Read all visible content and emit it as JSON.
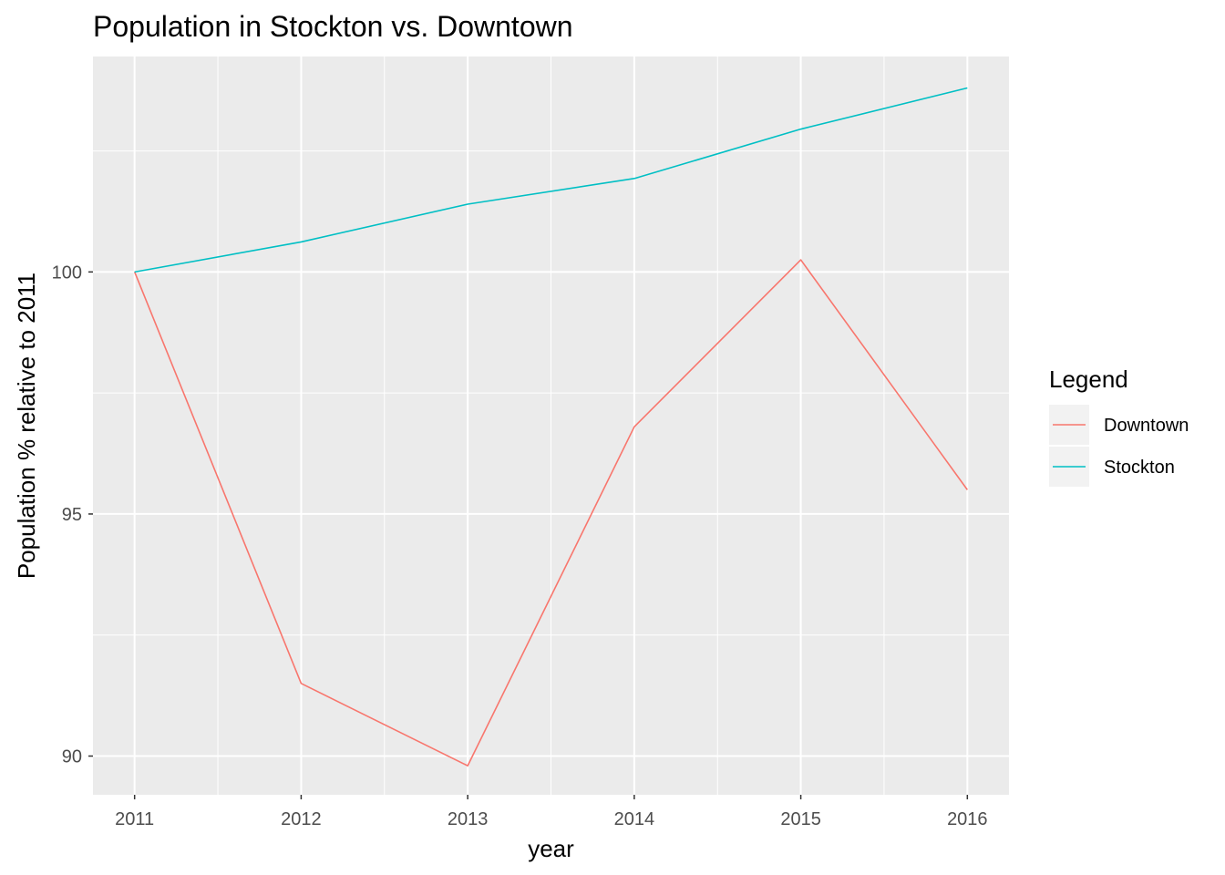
{
  "chart_data": {
    "type": "line",
    "title": "Population in Stockton vs. Downtown",
    "xlabel": "year",
    "ylabel": "Population % relative to 2011",
    "x": [
      2011,
      2012,
      2013,
      2014,
      2015,
      2016
    ],
    "xlim": [
      2010.75,
      2016.25
    ],
    "ylim": [
      89.2,
      104.45
    ],
    "y_ticks": [
      90,
      95,
      100
    ],
    "y_minor_ticks": [
      92.5,
      97.5,
      102.5
    ],
    "x_minor_ticks": [
      2011.5,
      2012.5,
      2013.5,
      2014.5,
      2015.5
    ],
    "grid": true,
    "legend": {
      "title": "Legend",
      "position": "right"
    },
    "series": [
      {
        "name": "Downtown",
        "color": "#F8766D",
        "values": [
          100.0,
          91.5,
          89.8,
          96.8,
          100.25,
          95.5
        ]
      },
      {
        "name": "Stockton",
        "color": "#00BFC4",
        "values": [
          100.0,
          100.62,
          101.4,
          101.93,
          102.95,
          103.8
        ]
      }
    ]
  },
  "colors": {
    "panel_background": "#EBEBEB",
    "grid_line": "#FFFFFF",
    "tick_text": "#4D4D4D",
    "legend_key_background": "#F2F2F2"
  }
}
